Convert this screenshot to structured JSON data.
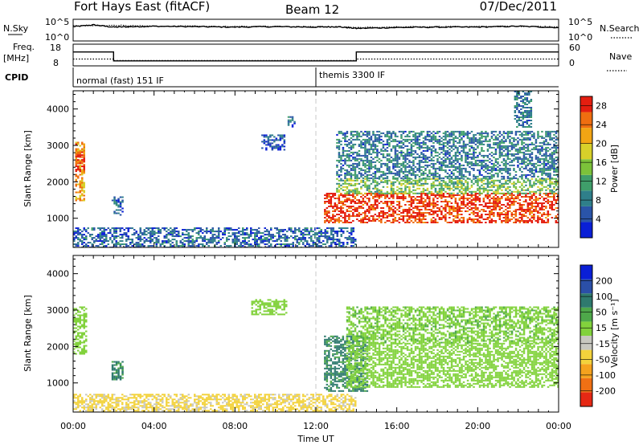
{
  "header": {
    "station": "Fort Hays East (fitACF)",
    "beam": "Beam 12",
    "date": "07/Dec/2011"
  },
  "labels": {
    "nsky": "N.Sky",
    "nsearch": "N.Search",
    "freq": "Freq.",
    "freq_unit": "[MHz]",
    "nave": "Nave",
    "cpid": "CPID",
    "slant_range": "Slant Range [km]",
    "time_axis": "Time UT",
    "power_cbar": "Power [dB]",
    "velocity_cbar": "Velocity [m s⁻¹]"
  },
  "noise_axis": {
    "left_ticks": [
      "10^5",
      "10^0"
    ],
    "right_ticks": [
      "10^5",
      "10^0"
    ]
  },
  "freq_axis": {
    "left_ticks": [
      "18",
      "8"
    ],
    "right_ticks": [
      "60",
      "0"
    ]
  },
  "cpid_segments": [
    {
      "start_hour": 0,
      "end_hour": 12,
      "label": "normal (fast) 151 IF"
    },
    {
      "start_hour": 12,
      "end_hour": 24,
      "label": "themis 3300 IF"
    }
  ],
  "colors": {
    "power": [
      "#0a1fd6",
      "#2a54a8",
      "#2f7f8a",
      "#3f9e6a",
      "#7cc23a",
      "#d8d02a",
      "#f2a514",
      "#ef6e10",
      "#e41e10"
    ],
    "velocity": [
      "#0a1fd6",
      "#2b4fa8",
      "#2f7a6e",
      "#4ea84a",
      "#82d23c",
      "#c8c8c0",
      "#f3d23c",
      "#f5a21e",
      "#f07014",
      "#e62814"
    ]
  },
  "chart_data": [
    {
      "type": "line",
      "name": "noise-panel",
      "x_unit": "hour UT",
      "xlim": [
        0,
        24
      ],
      "series": [
        {
          "name": "N.Sky",
          "x": [
            0,
            1,
            2,
            3,
            4,
            6,
            8,
            10,
            12,
            13,
            14,
            16,
            18,
            20,
            22,
            24
          ],
          "y": [
            3.3,
            3.7,
            3.2,
            3.3,
            3.4,
            3.3,
            3.2,
            3.3,
            3.2,
            3.3,
            2.9,
            3.1,
            3.2,
            3.2,
            3.4,
            3.1
          ]
        },
        {
          "name": "N.Search",
          "x": [
            0,
            2,
            4,
            6,
            8,
            10,
            12,
            13,
            14,
            16,
            18,
            20,
            22,
            24
          ],
          "y": [
            3.5,
            3.6,
            3.4,
            3.4,
            3.3,
            3.4,
            3.3,
            3.3,
            3.1,
            3.2,
            3.3,
            3.3,
            3.4,
            3.3
          ]
        }
      ],
      "ylim": [
        0,
        5
      ]
    },
    {
      "type": "line",
      "name": "frequency-panel",
      "xlim": [
        0,
        24
      ],
      "series": [
        {
          "name": "Freq.",
          "x": [
            0,
            2,
            2,
            14,
            14,
            24
          ],
          "y": [
            14.4,
            14.4,
            10.3,
            10.3,
            14.4,
            14.4
          ]
        },
        {
          "name": "Nave",
          "x": [
            0,
            2,
            2,
            14,
            14,
            24
          ],
          "y": [
            19,
            19,
            15,
            15,
            19,
            19
          ]
        }
      ],
      "ylim": [
        8,
        18
      ],
      "ylim_right": [
        0,
        60
      ]
    },
    {
      "type": "heatmap",
      "name": "power",
      "xlabel": "Time UT",
      "ylabel": "Slant Range [km]",
      "x_ticks": [
        "00:00",
        "04:00",
        "08:00",
        "12:00",
        "16:00",
        "20:00",
        "00:00"
      ],
      "xlim": [
        0,
        24
      ],
      "ylim": [
        200,
        4500
      ],
      "y_ticks": [
        1000,
        2000,
        3000,
        4000
      ],
      "colorbar": {
        "label": "Power [dB]",
        "ticks": [
          4,
          8,
          12,
          16,
          20,
          24,
          28
        ],
        "range": [
          0,
          30
        ]
      },
      "regions": [
        {
          "x0": 0.1,
          "x1": 0.55,
          "y0": 1500,
          "y1": 3100,
          "value": 22
        },
        {
          "x0": 0.1,
          "x1": 0.55,
          "y0": 2300,
          "y1": 2800,
          "value": 28
        },
        {
          "x0": 1.9,
          "x1": 2.4,
          "y0": 1100,
          "y1": 1600,
          "value": 6
        },
        {
          "x0": 9.3,
          "x1": 10.4,
          "y0": 2900,
          "y1": 3300,
          "value": 5
        },
        {
          "x0": 10.6,
          "x1": 10.9,
          "y0": 3500,
          "y1": 3800,
          "value": 6
        },
        {
          "x0": 0,
          "x1": 14,
          "y0": 200,
          "y1": 750,
          "value": 6
        },
        {
          "x0": 12.4,
          "x1": 24,
          "y0": 900,
          "y1": 1700,
          "value": 28
        },
        {
          "x0": 13,
          "x1": 24,
          "y0": 1700,
          "y1": 2100,
          "value": 14
        },
        {
          "x0": 13,
          "x1": 24,
          "y0": 2100,
          "y1": 3400,
          "value": 8
        },
        {
          "x0": 21.8,
          "x1": 22.6,
          "y0": 3500,
          "y1": 4500,
          "value": 8
        }
      ]
    },
    {
      "type": "heatmap",
      "name": "velocity",
      "xlabel": "Time UT",
      "ylabel": "Slant Range [km]",
      "x_ticks": [
        "00:00",
        "04:00",
        "08:00",
        "12:00",
        "16:00",
        "20:00",
        "00:00"
      ],
      "xlim": [
        0,
        24
      ],
      "ylim": [
        200,
        4500
      ],
      "y_ticks": [
        1000,
        2000,
        3000,
        4000
      ],
      "colorbar": {
        "label": "Velocity [m s⁻¹]",
        "ticks": [
          200,
          100,
          50,
          15,
          -15,
          -50,
          -100,
          -200
        ],
        "range": [
          -250,
          250
        ]
      },
      "regions": [
        {
          "x0": 0,
          "x1": 0.6,
          "y0": 1800,
          "y1": 3100,
          "value": 0
        },
        {
          "x0": 1.9,
          "x1": 2.4,
          "y0": 1100,
          "y1": 1600,
          "value": 40
        },
        {
          "x0": 8.8,
          "x1": 10.5,
          "y0": 2900,
          "y1": 3300,
          "value": 0
        },
        {
          "x0": 0,
          "x1": 14,
          "y0": 200,
          "y1": 700,
          "value": -40
        },
        {
          "x0": 12.4,
          "x1": 14.5,
          "y0": 800,
          "y1": 2300,
          "value": 40
        },
        {
          "x0": 13.5,
          "x1": 24,
          "y0": 900,
          "y1": 2100,
          "value": 0
        },
        {
          "x0": 13.5,
          "x1": 24,
          "y0": 2100,
          "y1": 3100,
          "value": 5
        }
      ]
    }
  ]
}
